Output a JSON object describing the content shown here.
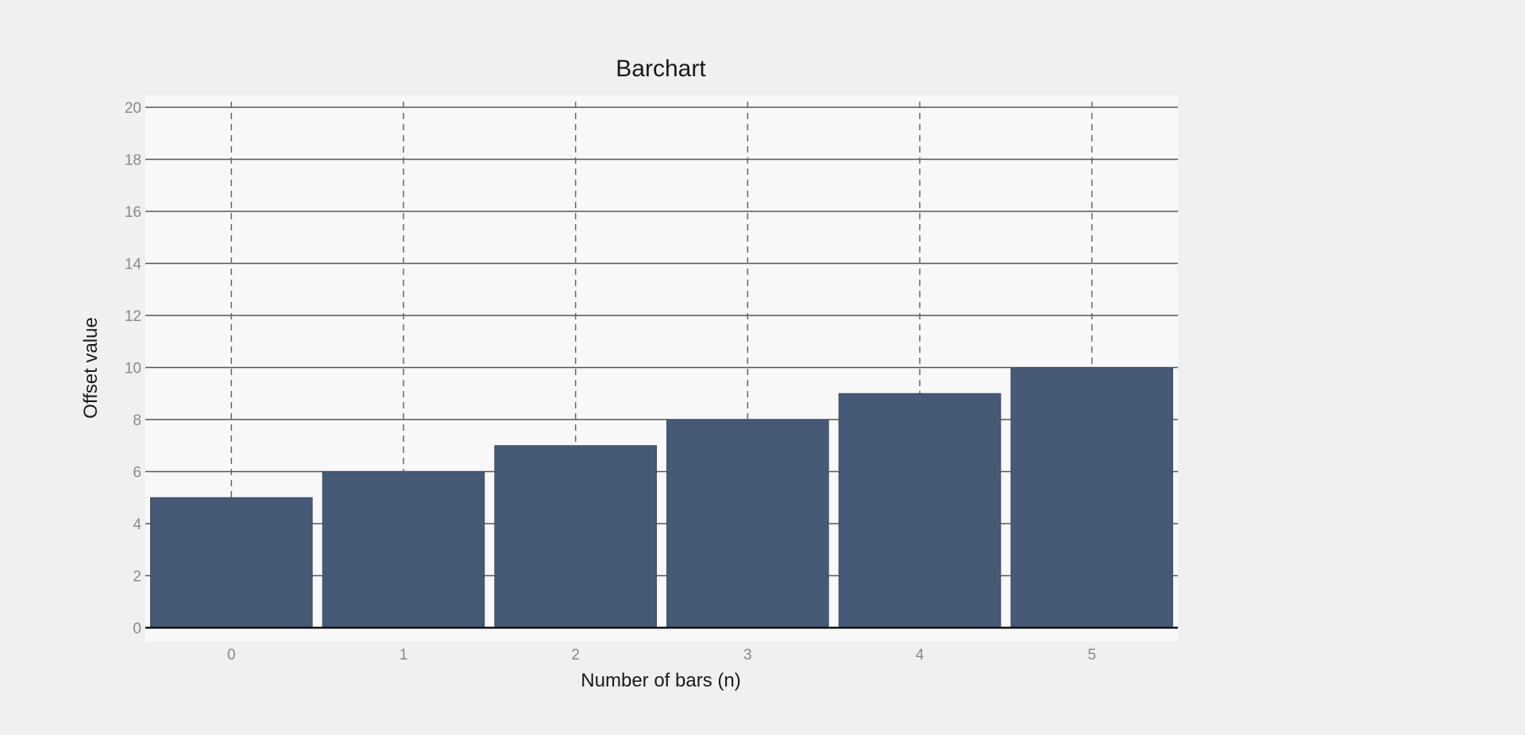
{
  "chart_data": {
    "type": "bar",
    "title": "Barchart",
    "xlabel": "Number of bars (n)",
    "ylabel": "Offset value",
    "categories": [
      "0",
      "1",
      "2",
      "3",
      "4",
      "5"
    ],
    "values": [
      5,
      6,
      7,
      8,
      9,
      10
    ],
    "ylim": [
      0,
      20
    ],
    "yticks": [
      0,
      2,
      4,
      6,
      8,
      10,
      12,
      14,
      16,
      18,
      20
    ],
    "grid": true,
    "legend": "none",
    "colors": {
      "bar": "#465975",
      "plot_background": "#f8f8f8",
      "page_background": "#eff0f2",
      "gridline": "#555555",
      "vertical_gridline": "#666666",
      "tick_label": "#888888"
    }
  }
}
